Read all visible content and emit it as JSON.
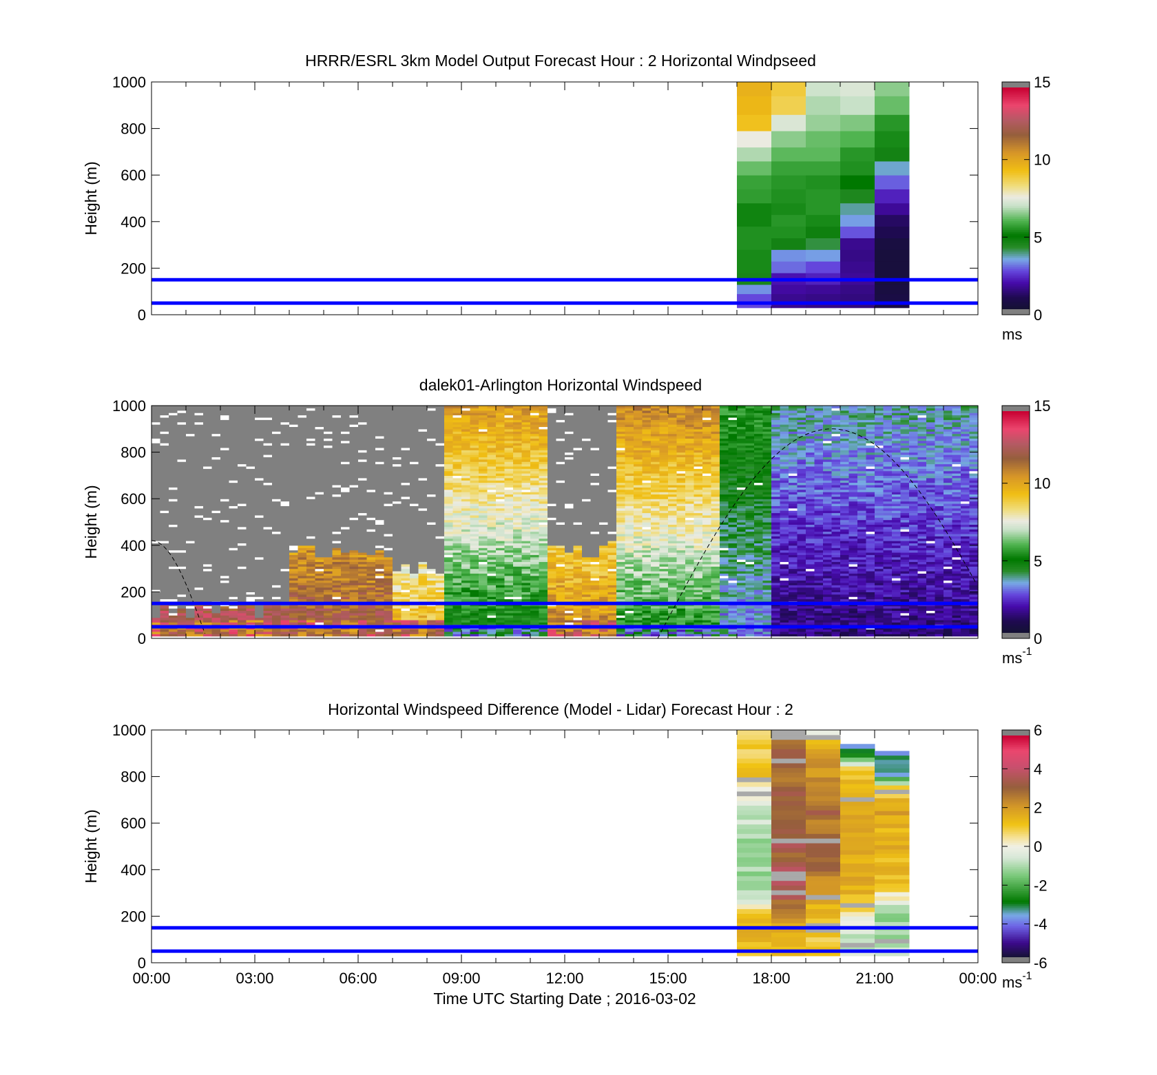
{
  "chart_data": [
    {
      "type": "heatmap",
      "title": "HRRR/ESRL 3km Model Output   Forecast Hour : 2 Horizontal Windpseed",
      "ylabel": "Height (m)",
      "xlim": [
        0,
        24
      ],
      "ylim": [
        0,
        1000
      ],
      "yticks": [
        "0",
        "200",
        "400",
        "600",
        "800",
        "1000"
      ],
      "reference_lines": [
        50,
        150
      ],
      "reference_color": "#0000ff",
      "colorbar": {
        "min": 0,
        "max": 15,
        "ticks": [
          "0",
          "5",
          "10",
          "15"
        ],
        "unit": "ms",
        "unit_sup": ""
      },
      "hour_columns": [
        17,
        18,
        19,
        20,
        21
      ],
      "cells_bottom_to_top": [
        [
          2.6,
          1.5,
          1.4,
          1.3,
          0.5
        ],
        [
          3.2,
          1.7,
          1.6,
          1.4,
          0.4
        ],
        [
          4.5,
          1.9,
          2.1,
          1.6,
          0.3
        ],
        [
          5.3,
          2.9,
          2.6,
          1.5,
          0.3
        ],
        [
          5.3,
          3.2,
          3.3,
          1.4,
          0.3
        ],
        [
          5.4,
          4.6,
          4.1,
          1.5,
          0.4
        ],
        [
          5.4,
          5.4,
          4.7,
          2.7,
          0.8
        ],
        [
          5.2,
          5.5,
          5.3,
          3.3,
          1.0
        ],
        [
          5.2,
          5.3,
          5.5,
          3.7,
          1.6
        ],
        [
          5.6,
          5.4,
          5.5,
          4.4,
          2.1
        ],
        [
          5.7,
          5.5,
          5.4,
          5.0,
          2.8
        ],
        [
          6.2,
          5.7,
          5.7,
          5.4,
          3.5
        ],
        [
          6.8,
          6.1,
          6.1,
          5.5,
          4.6
        ],
        [
          7.6,
          6.5,
          6.2,
          6.0,
          5.3
        ],
        [
          9.3,
          7.3,
          6.6,
          6.4,
          5.5
        ],
        [
          9.6,
          8.8,
          6.8,
          7.0,
          6.2
        ],
        [
          9.8,
          9.0,
          7.1,
          7.3,
          6.5
        ]
      ],
      "top_heights": [
        30,
        90,
        130,
        180,
        230,
        280,
        330,
        380,
        430,
        480,
        540,
        600,
        660,
        720,
        790,
        860,
        940,
        1000
      ]
    },
    {
      "type": "heatmap",
      "title": "dalek01-Arlington  Horizontal Windspeed",
      "ylabel": "Height (m)",
      "xlim": [
        0,
        24
      ],
      "ylim": [
        0,
        1000
      ],
      "yticks": [
        "0",
        "200",
        "400",
        "600",
        "800",
        "1000"
      ],
      "reference_lines": [
        50,
        150
      ],
      "reference_color": "#0000ff",
      "colorbar": {
        "min": 0,
        "max": 15,
        "ticks": [
          "0",
          "5",
          "10",
          "15"
        ],
        "unit": "ms",
        "unit_sup": "-1"
      },
      "invalid_color": "#808080",
      "lidar_time_blocks": [
        {
          "t0": 0.0,
          "t1": 4.0,
          "low": 14.0,
          "top": 120
        },
        {
          "t0": 4.0,
          "t1": 7.0,
          "low": 12.5,
          "top": 360
        },
        {
          "t0": 7.0,
          "t1": 8.5,
          "low": 10.0,
          "top": 300
        },
        {
          "t0": 8.5,
          "t1": 11.5,
          "low": 4.5,
          "top": 1000
        },
        {
          "t0": 11.5,
          "t1": 13.5,
          "low": 11.0,
          "top": 380
        },
        {
          "t0": 13.5,
          "t1": 16.5,
          "low": 5.0,
          "top": 1000
        },
        {
          "t0": 16.5,
          "t1": 18.0,
          "low": 3.0,
          "top": 1000
        },
        {
          "t0": 18.0,
          "t1": 24.0,
          "low": 1.2,
          "top": 1000
        }
      ],
      "sun_elevation_curve": true
    },
    {
      "type": "heatmap",
      "title": "Horizontal Windspeed Difference (Model - Lidar) Forecast Hour : 2",
      "ylabel": "Height (m)",
      "xlabel": "Time UTC  Starting Date ; 2016-03-02",
      "xlim": [
        0,
        24
      ],
      "ylim": [
        0,
        1000
      ],
      "xticks": [
        "00:00",
        "03:00",
        "06:00",
        "09:00",
        "12:00",
        "15:00",
        "18:00",
        "21:00",
        "00:00"
      ],
      "yticks": [
        "0",
        "200",
        "400",
        "600",
        "800",
        "1000"
      ],
      "reference_lines": [
        50,
        150
      ],
      "reference_color": "#0000ff",
      "colorbar": {
        "min": -6,
        "max": 6,
        "ticks": [
          "-6",
          "-4",
          "-2",
          "0",
          "2",
          "4",
          "6"
        ],
        "unit": "ms",
        "unit_sup": "-1"
      },
      "hour_columns": [
        17,
        18,
        19,
        20,
        21
      ],
      "column_tops": [
        1000,
        1000,
        1000,
        940,
        910
      ],
      "column_bottoms": [
        30,
        30,
        30,
        30,
        30
      ],
      "column_levels_bottom_to_top": [
        [
          1.0,
          1.6,
          1.4,
          0.6,
          -0.8,
          -1.1,
          -1.2,
          -1.0,
          -1.3,
          -0.9,
          -0.6,
          -0.2,
          0.7,
          1.3,
          0.5,
          1.1,
          0.9
        ],
        [
          1.2,
          1.6,
          1.5,
          2.6,
          3.4,
          4.0,
          3.6,
          3.2,
          3.8,
          3.0,
          2.8,
          3.4,
          3.1,
          2.7,
          3.5,
          3.0,
          3.3
        ],
        [
          1.1,
          1.2,
          1.3,
          1.5,
          2.0,
          2.5,
          2.9,
          3.1,
          3.0,
          2.6,
          3.3,
          2.8,
          2.4,
          2.2,
          1.8,
          1.3,
          -0.7
        ],
        [
          -0.8,
          -1.0,
          -0.5,
          0.4,
          1.1,
          1.6,
          1.8,
          1.5,
          1.9,
          2.1,
          1.7,
          1.4,
          1.9,
          1.6,
          0.9,
          -2.8,
          -3.8
        ],
        [
          -0.6,
          -0.9,
          -1.2,
          -1.4,
          -0.3,
          0.8,
          1.4,
          1.3,
          1.6,
          1.8,
          1.5,
          1.9,
          1.4,
          1.0,
          -3.8,
          -3.6,
          -3.5
        ]
      ]
    }
  ]
}
